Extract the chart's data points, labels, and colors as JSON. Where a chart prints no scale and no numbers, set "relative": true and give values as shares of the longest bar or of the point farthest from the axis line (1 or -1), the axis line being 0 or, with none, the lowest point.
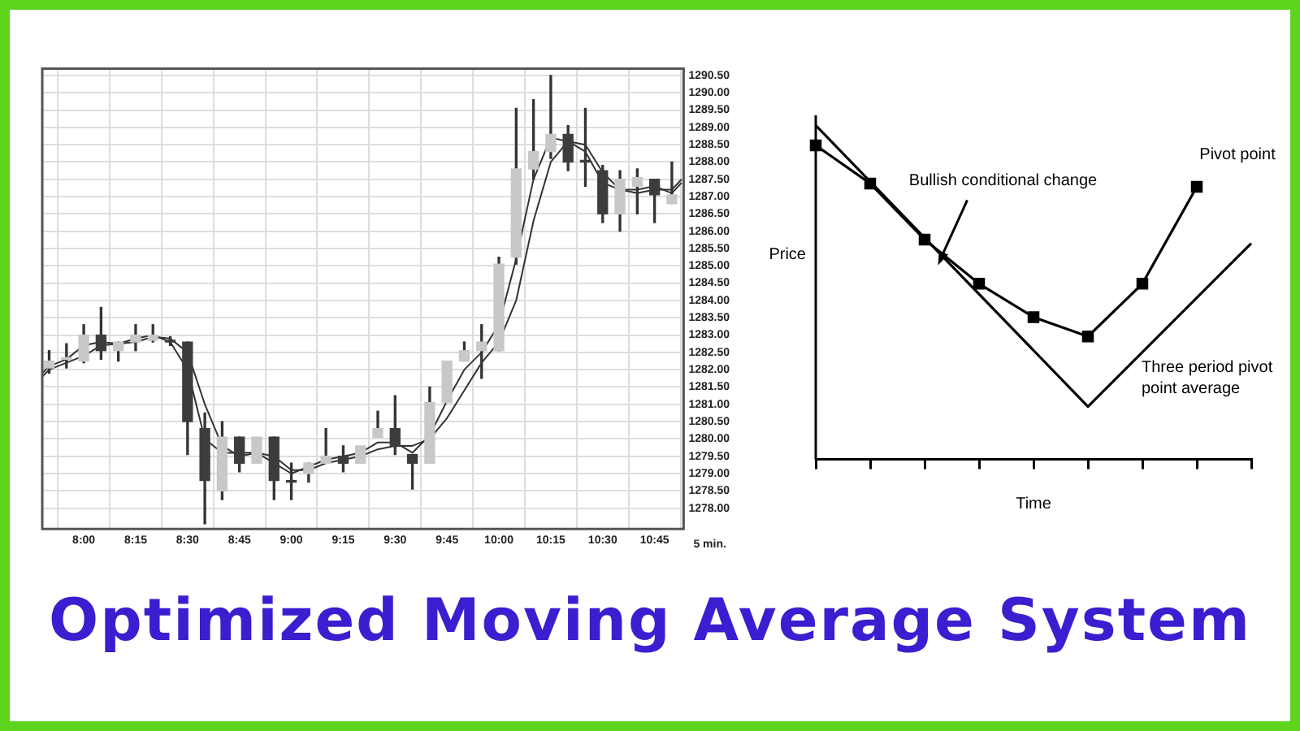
{
  "chart_data": [
    {
      "type": "candlestick",
      "title": "Optimized Moving Average System",
      "x": [
        7.8333,
        7.9167,
        8,
        8.0833,
        8.1667,
        8.25,
        8.3333,
        8.4167,
        8.5,
        8.5833,
        8.6667,
        8.75,
        8.8333,
        8.9167,
        9,
        9.0833,
        9.1667,
        9.25,
        9.3333,
        9.4167,
        9.5,
        9.5833,
        9.6667,
        9.75,
        9.8333,
        9.9167,
        10,
        10.0833,
        10.1667,
        10.25,
        10.3333,
        10.4167,
        10.5,
        10.5833,
        10.6667,
        10.75,
        10.8333
      ],
      "ohlc": [
        [
          1282.05,
          1282.55,
          1281.9,
          1282.25
        ],
        [
          1282.3,
          1282.75,
          1282.05,
          1282.35
        ],
        [
          1282.25,
          1283.3,
          1282.2,
          1283.0
        ],
        [
          1283.0,
          1283.8,
          1282.3,
          1282.55
        ],
        [
          1282.55,
          1282.8,
          1282.25,
          1282.8
        ],
        [
          1282.8,
          1283.3,
          1282.55,
          1283.0
        ],
        [
          1282.85,
          1283.3,
          1282.8,
          1283.0
        ],
        [
          1282.85,
          1282.95,
          1282.7,
          1282.8
        ],
        [
          1282.8,
          1282.8,
          1279.55,
          1280.5
        ],
        [
          1280.3,
          1280.75,
          1277.55,
          1278.8
        ],
        [
          1278.5,
          1280.5,
          1278.25,
          1280.05
        ],
        [
          1280.05,
          1280.05,
          1279.05,
          1279.3
        ],
        [
          1279.3,
          1280.05,
          1279.3,
          1280.05
        ],
        [
          1280.05,
          1280.05,
          1278.25,
          1278.8
        ],
        [
          1278.8,
          1279.3,
          1278.25,
          1278.75
        ],
        [
          1279.0,
          1279.3,
          1278.75,
          1279.3
        ],
        [
          1279.3,
          1280.3,
          1279.3,
          1279.5
        ],
        [
          1279.5,
          1279.8,
          1279.05,
          1279.3
        ],
        [
          1279.3,
          1279.8,
          1279.3,
          1279.8
        ],
        [
          1280.05,
          1280.8,
          1280.05,
          1280.3
        ],
        [
          1280.3,
          1281.25,
          1279.55,
          1279.8
        ],
        [
          1279.55,
          1279.55,
          1278.55,
          1279.3
        ],
        [
          1279.3,
          1281.5,
          1279.3,
          1281.05
        ],
        [
          1281.05,
          1282.25,
          1281.05,
          1282.25
        ],
        [
          1282.25,
          1282.8,
          1282.25,
          1282.55
        ],
        [
          1282.55,
          1283.3,
          1281.75,
          1282.8
        ],
        [
          1282.55,
          1285.25,
          1282.55,
          1285.05
        ],
        [
          1285.25,
          1289.55,
          1285.05,
          1287.8
        ],
        [
          1287.8,
          1289.8,
          1287.5,
          1288.3
        ],
        [
          1288.3,
          1290.5,
          1288.1,
          1288.8
        ],
        [
          1288.8,
          1289.05,
          1287.75,
          1288.0
        ],
        [
          1288.0,
          1289.55,
          1287.3,
          1288.0
        ],
        [
          1287.75,
          1287.9,
          1286.25,
          1286.5
        ],
        [
          1286.5,
          1287.75,
          1286.0,
          1287.5
        ],
        [
          1287.3,
          1287.8,
          1286.5,
          1287.55
        ],
        [
          1287.5,
          1287.5,
          1286.25,
          1287.05
        ],
        [
          1286.8,
          1288.0,
          1286.8,
          1287.05
        ]
      ],
      "colors": [
        "#c8c8c8",
        "#c8c8c8",
        "#c8c8c8",
        "#3c3c3c",
        "#c8c8c8",
        "#c8c8c8",
        "#c8c8c8",
        "#3c3c3c",
        "#3c3c3c",
        "#3c3c3c",
        "#c8c8c8",
        "#3c3c3c",
        "#c8c8c8",
        "#3c3c3c",
        "#3c3c3c",
        "#c8c8c8",
        "#c8c8c8",
        "#3c3c3c",
        "#c8c8c8",
        "#c8c8c8",
        "#3c3c3c",
        "#3c3c3c",
        "#c8c8c8",
        "#c8c8c8",
        "#c8c8c8",
        "#c8c8c8",
        "#c8c8c8",
        "#c8c8c8",
        "#c8c8c8",
        "#c8c8c8",
        "#3c3c3c",
        "#3c3c3c",
        "#3c3c3c",
        "#c8c8c8",
        "#c8c8c8",
        "#3c3c3c",
        "#c8c8c8"
      ],
      "series": [
        {
          "type": "line",
          "color": "#333333",
          "x": [
            7.8,
            7.8333,
            7.9167,
            8,
            8.0833,
            8.1667,
            8.25,
            8.3333,
            8.4167,
            8.5,
            8.5833,
            8.6667,
            8.75,
            8.8333,
            8.9167,
            9,
            9.0833,
            9.1667,
            9.25,
            9.3333,
            9.4167,
            9.5,
            9.5833,
            9.6667,
            9.75,
            9.8333,
            9.9167,
            10,
            10.0833,
            10.1667,
            10.25,
            10.3333,
            10.4167,
            10.5,
            10.5833,
            10.6667,
            10.75,
            10.8333,
            10.88
          ],
          "values": [
            1281.9,
            1282.1,
            1282.3,
            1282.7,
            1282.8,
            1282.75,
            1282.9,
            1283.0,
            1282.8,
            1282.0,
            1280.0,
            1279.6,
            1279.6,
            1279.6,
            1279.3,
            1279.0,
            1279.2,
            1279.4,
            1279.5,
            1279.6,
            1279.9,
            1279.9,
            1279.6,
            1280.1,
            1281.1,
            1282.0,
            1282.5,
            1283.3,
            1285.2,
            1287.5,
            1288.7,
            1288.6,
            1288.3,
            1287.4,
            1287.2,
            1287.2,
            1287.3,
            1287.1,
            1287.4
          ]
        },
        {
          "type": "line",
          "color": "#333333",
          "x": [
            7.8,
            7.8333,
            7.9167,
            8,
            8.0833,
            8.1667,
            8.25,
            8.3333,
            8.4167,
            8.5,
            8.5833,
            8.6667,
            8.75,
            8.8333,
            8.9167,
            9,
            9.0833,
            9.1667,
            9.25,
            9.3333,
            9.4167,
            9.5,
            9.5833,
            9.6667,
            9.75,
            9.8333,
            9.9167,
            10,
            10.0833,
            10.1667,
            10.25,
            10.3333,
            10.4167,
            10.5,
            10.5833,
            10.6667,
            10.75,
            10.8333,
            10.88
          ],
          "values": [
            1281.8,
            1282.0,
            1282.2,
            1282.4,
            1282.7,
            1282.75,
            1282.8,
            1282.95,
            1282.9,
            1282.5,
            1281.0,
            1279.8,
            1279.5,
            1279.6,
            1279.5,
            1279.1,
            1279.1,
            1279.3,
            1279.4,
            1279.5,
            1279.7,
            1279.8,
            1279.8,
            1280.0,
            1280.6,
            1281.4,
            1282.2,
            1282.8,
            1284.0,
            1286.3,
            1288.0,
            1288.6,
            1288.5,
            1287.7,
            1287.2,
            1287.1,
            1287.2,
            1287.2,
            1287.5
          ]
        }
      ],
      "xlim": [
        7.8,
        10.89
      ],
      "xticks": [
        {
          "value": 8,
          "label": "8:00"
        },
        {
          "value": 8.25,
          "label": "8:15"
        },
        {
          "value": 8.5,
          "label": "8:30"
        },
        {
          "value": 8.75,
          "label": "8:45"
        },
        {
          "value": 9,
          "label": "9:00"
        },
        {
          "value": 9.25,
          "label": "9:15"
        },
        {
          "value": 9.5,
          "label": "9:30"
        },
        {
          "value": 9.75,
          "label": "9:45"
        },
        {
          "value": 10,
          "label": "10:00"
        },
        {
          "value": 10.25,
          "label": "10:15"
        },
        {
          "value": 10.5,
          "label": "10:30"
        },
        {
          "value": 10.75,
          "label": "10:45"
        }
      ],
      "ylim": [
        1277.4,
        1290.7
      ],
      "yticks": [
        {
          "value": 1278,
          "label": "1278.00"
        },
        {
          "value": 1278.5,
          "label": "1278.50"
        },
        {
          "value": 1279,
          "label": "1279.00"
        },
        {
          "value": 1279.5,
          "label": "1279.50"
        },
        {
          "value": 1280,
          "label": "1280.00"
        },
        {
          "value": 1280.5,
          "label": "1280.50"
        },
        {
          "value": 1281,
          "label": "1281.00"
        },
        {
          "value": 1281.5,
          "label": "1281.50"
        },
        {
          "value": 1282,
          "label": "1282.00"
        },
        {
          "value": 1282.5,
          "label": "1282.50"
        },
        {
          "value": 1283,
          "label": "1283.00"
        },
        {
          "value": 1283.5,
          "label": "1283.50"
        },
        {
          "value": 1284,
          "label": "1284.00"
        },
        {
          "value": 1284.5,
          "label": "1284.50"
        },
        {
          "value": 1285,
          "label": "1285.00"
        },
        {
          "value": 1285.5,
          "label": "1285.50"
        },
        {
          "value": 1286,
          "label": "1286.00"
        },
        {
          "value": 1286.5,
          "label": "1286.50"
        },
        {
          "value": 1287,
          "label": "1287.00"
        },
        {
          "value": 1287.5,
          "label": "1287.50"
        },
        {
          "value": 1288,
          "label": "1288.00"
        },
        {
          "value": 1288.5,
          "label": "1288.50"
        },
        {
          "value": 1289,
          "label": "1289.00"
        },
        {
          "value": 1289.5,
          "label": "1289.50"
        },
        {
          "value": 1290,
          "label": "1290.00"
        },
        {
          "value": 1290.5,
          "label": "1290.50"
        }
      ],
      "grid": true,
      "annotations": [
        "5 min."
      ]
    },
    {
      "type": "line",
      "relative": true,
      "xlabel": "Time",
      "ylabel": "Price",
      "categories": [
        null,
        null,
        null,
        null,
        null,
        null,
        null,
        null,
        null
      ],
      "annotations": [
        "Bullish conditional change"
      ],
      "series": [
        {
          "name": "Pivot point",
          "type": "line",
          "color": "#000000",
          "marker": "square",
          "values": [
            0.94,
            0.826,
            0.658,
            0.526,
            0.426,
            0.368,
            0.526,
            0.816,
            null
          ]
        },
        {
          "name": "Three period pivot point average",
          "type": "line",
          "color": "#000000",
          "marker": "none",
          "values": [
            1,
            null,
            null,
            null,
            null,
            0.158,
            null,
            null,
            0.647
          ]
        }
      ]
    }
  ]
}
